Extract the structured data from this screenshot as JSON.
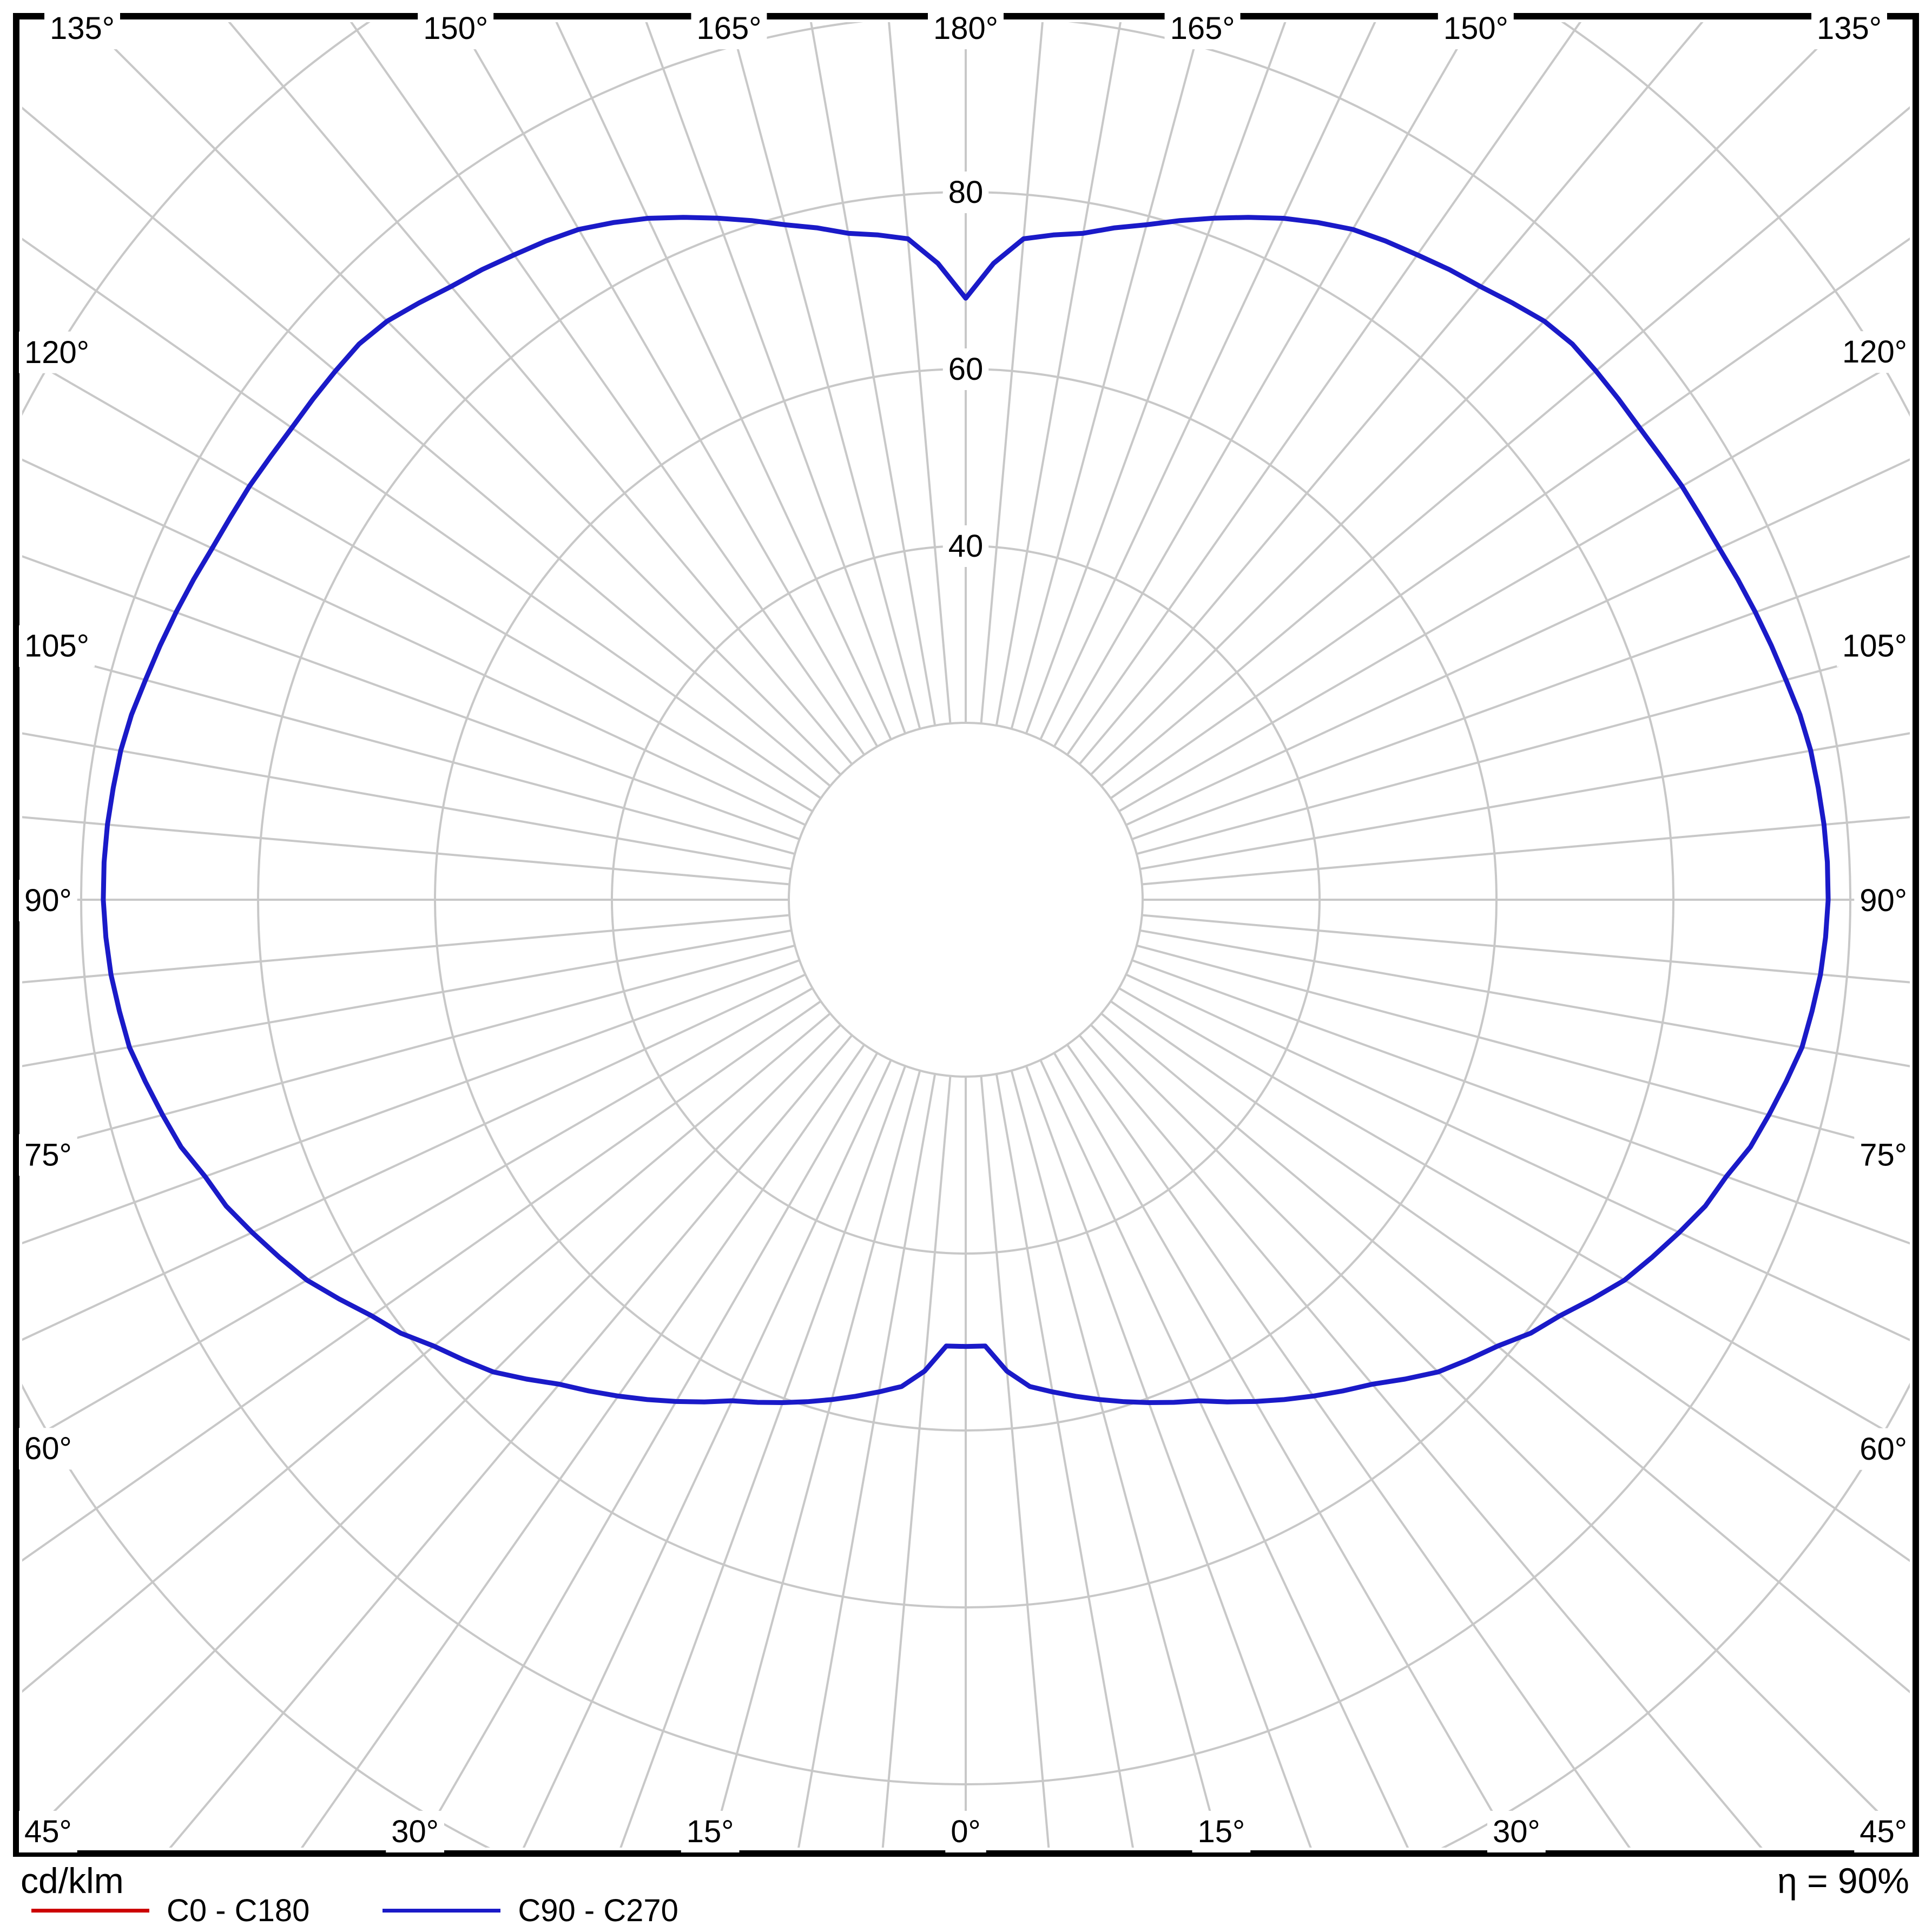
{
  "footer": {
    "units_label": "cd/klm",
    "efficiency_label": "η = 90%"
  },
  "legend": {
    "items": [
      {
        "label": "C0 - C180",
        "color": "#cc0000"
      },
      {
        "label": "C90 - C270",
        "color": "#1a1ac8"
      }
    ]
  },
  "chart_data": {
    "type": "line",
    "subtype": "polar-photometric-distribution",
    "title": "",
    "units_label": "cd/klm",
    "efficiency_label": "η = 90%",
    "grid_color": "#c8c8c8",
    "frame_color": "#000000",
    "radial_rings": [
      20,
      40,
      60,
      80,
      100,
      120
    ],
    "radial_tick_labels": [
      40,
      60,
      80
    ],
    "radial_axis_max_labeled": 80,
    "angle_grid_step_deg": 5,
    "angle_label_step_deg": 15,
    "angle_labels": [
      "0°",
      "15°",
      "30°",
      "45°",
      "60°",
      "75°",
      "90°",
      "105°",
      "120°",
      "135°",
      "150°",
      "165°",
      "180°"
    ],
    "angle_convention": "gamma measured from nadir (0° bottom) up to zenith (180° top), mirrored left/right",
    "legend_position": "bottom-left",
    "series": [
      {
        "name": "C0 - C180",
        "color": "#cc0000",
        "gamma_deg": [],
        "values": []
      },
      {
        "name": "C90 - C270",
        "color": "#1a1ac8",
        "symmetric_about_vertical": true,
        "gamma_deg": [
          0,
          2.5,
          5,
          7.5,
          10,
          12.5,
          15,
          17.5,
          20,
          22.5,
          25,
          27.5,
          30,
          32.5,
          35,
          37.5,
          40,
          42.5,
          45,
          47.5,
          50,
          52.5,
          55,
          57.5,
          60,
          62.5,
          65,
          67.5,
          70,
          72.5,
          75,
          77.5,
          80,
          82.5,
          85,
          87.5,
          90,
          92.5,
          95,
          97.5,
          100,
          102.5,
          105,
          107.5,
          110,
          112.5,
          115,
          117.5,
          120,
          122.5,
          125,
          127.5,
          130,
          132.5,
          135,
          137.5,
          140,
          142.5,
          145,
          147.5,
          150,
          152.5,
          155,
          157.5,
          160,
          162.5,
          165,
          167.5,
          170,
          172.5,
          175,
          177.5,
          180
        ],
        "values": [
          50.5,
          50.5,
          53.5,
          55.5,
          56.5,
          57.5,
          58.5,
          59.5,
          60.5,
          61.5,
          62.5,
          64,
          65.5,
          67,
          68.5,
          70,
          71.5,
          73.5,
          75.5,
          77,
          78.5,
          80.5,
          82,
          84,
          86,
          87.5,
          89,
          90.5,
          91.5,
          93,
          94,
          95,
          96,
          96.5,
          97,
          97.3,
          97.5,
          97.5,
          97.4,
          97.2,
          97,
          96.6,
          96,
          95.5,
          95,
          94.5,
          94,
          93.7,
          93.5,
          93.2,
          93,
          93,
          93,
          93,
          92.5,
          91.5,
          90.5,
          89.8,
          89,
          88.3,
          87.5,
          86.3,
          85,
          83.5,
          82,
          80.5,
          79,
          77.8,
          76.5,
          75.8,
          75,
          72,
          68
        ]
      }
    ]
  }
}
